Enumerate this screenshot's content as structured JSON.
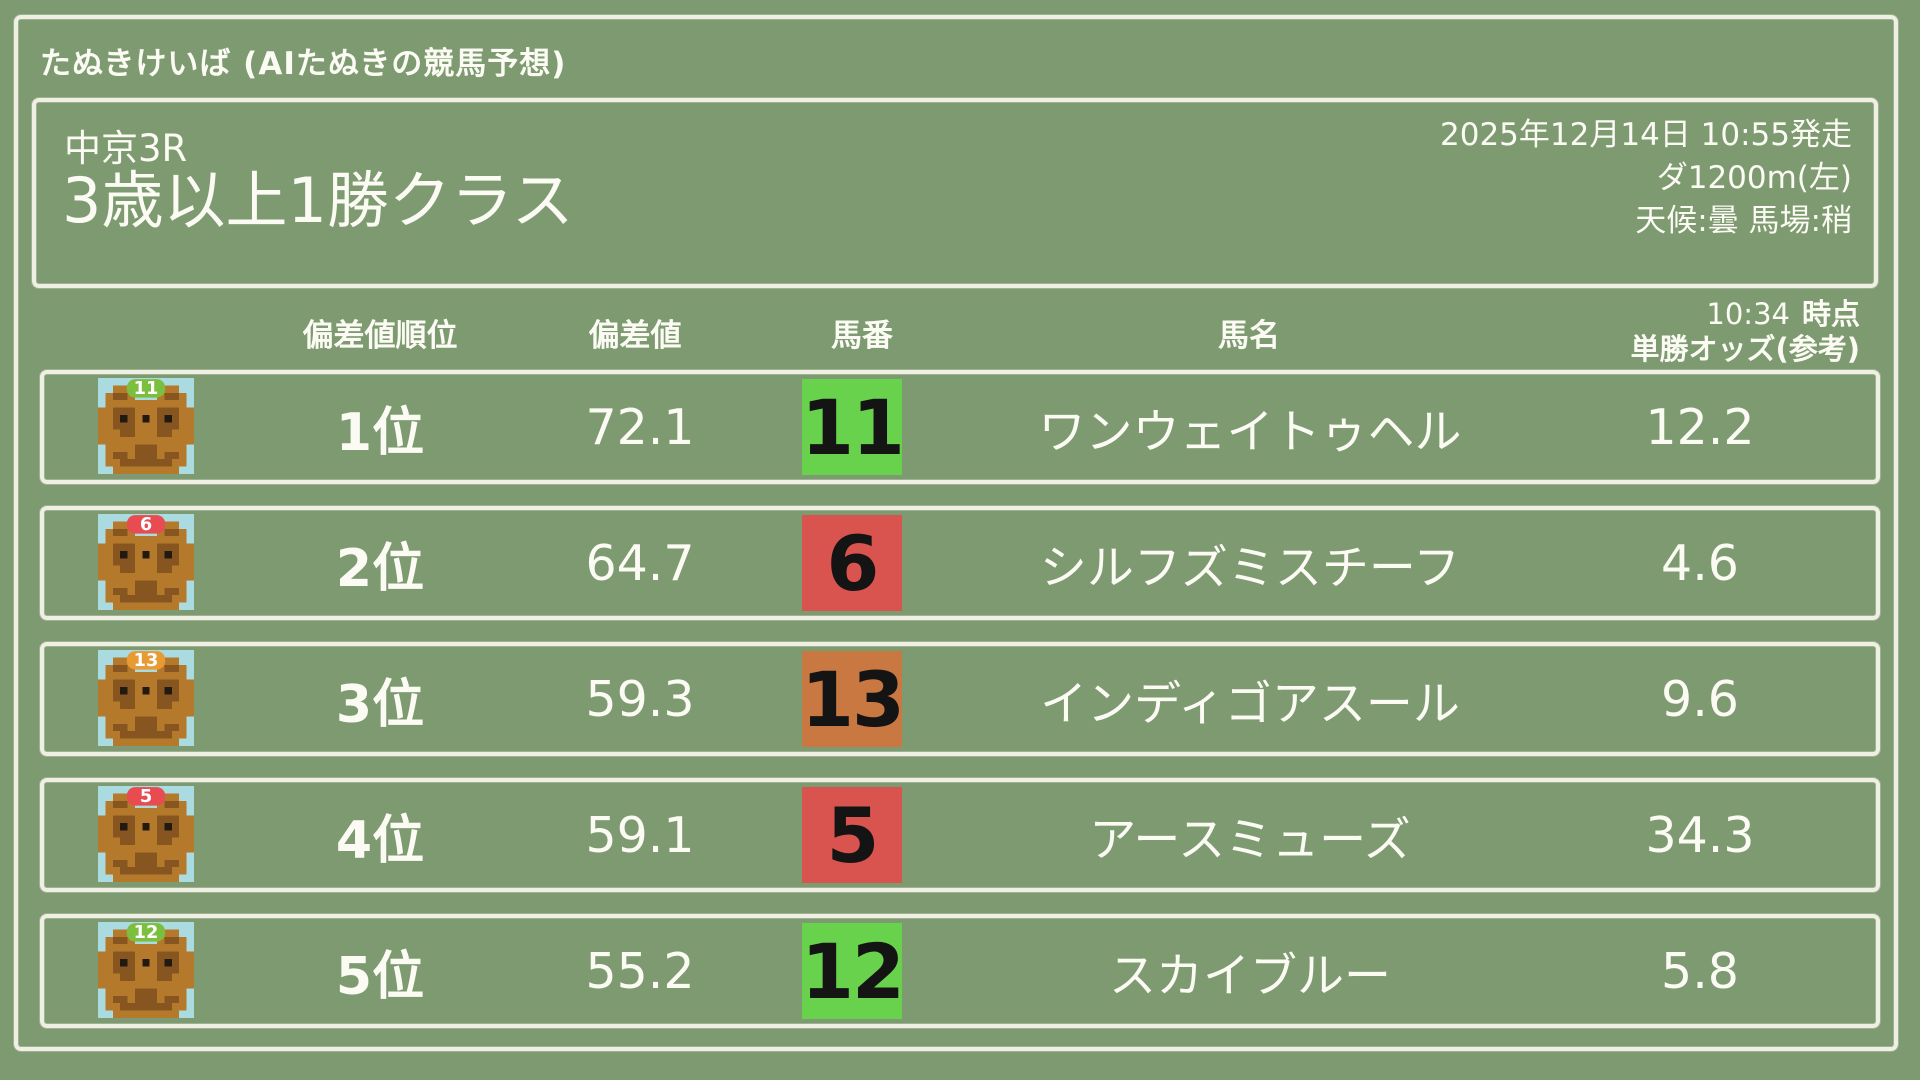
{
  "app": {
    "title": "たぬきけいば (AIたぬきの競馬予想)"
  },
  "race": {
    "track_race": "中京3R",
    "name": "3歳以上1勝クラス",
    "datetime": "2025年12月14日 10:55発走",
    "course": "ダ1200m(左)",
    "conditions": "天候:曇 馬場:稍"
  },
  "table": {
    "headers": {
      "rank": "偏差値順位",
      "score": "偏差値",
      "number": "馬番",
      "name": "馬名",
      "odds_time": "10:34",
      "odds_suffix": "時点",
      "odds_label": "単勝オッズ(参考)"
    },
    "rows": [
      {
        "rank": "1位",
        "score": "72.1",
        "number": "11",
        "number_color": "#68d24c",
        "badge_color": "#7cbf3f",
        "name": "ワンウェイトゥヘル",
        "odds": "12.2"
      },
      {
        "rank": "2位",
        "score": "64.7",
        "number": "6",
        "number_color": "#d9534f",
        "badge_color": "#e84b50",
        "name": "シルフズミスチーフ",
        "odds": "4.6"
      },
      {
        "rank": "3位",
        "score": "59.3",
        "number": "13",
        "number_color": "#c97842",
        "badge_color": "#e89a33",
        "name": "インディゴアスール",
        "odds": "9.6"
      },
      {
        "rank": "4位",
        "score": "59.1",
        "number": "5",
        "number_color": "#d9534f",
        "badge_color": "#e84b50",
        "name": "アースミューズ",
        "odds": "34.3"
      },
      {
        "rank": "5位",
        "score": "55.2",
        "number": "12",
        "number_color": "#68d24c",
        "badge_color": "#7cbf3f",
        "name": "スカイブルー",
        "odds": "5.8"
      }
    ]
  },
  "colors": {
    "background": "#7d9a71",
    "border": "#f0efe3",
    "text": "#fbfbf4",
    "number_text": "#141414",
    "icon": {
      "bg": "#a9dbe0",
      "body": "#b5792c",
      "dark": "#875620",
      "black": "#221a10",
      "badge_text": "#ffffff"
    }
  }
}
